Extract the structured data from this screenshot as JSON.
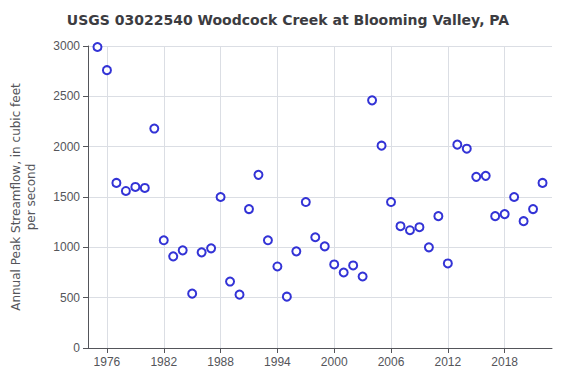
{
  "chart_data": {
    "type": "scatter",
    "title": "USGS 03022540 Woodcock Creek at Blooming Valley, PA",
    "ylabel": "Annual Peak Streamflow, in cubic feet\nper second",
    "x": [
      1975,
      1976,
      1977,
      1978,
      1979,
      1980,
      1981,
      1982,
      1983,
      1984,
      1985,
      1986,
      1987,
      1988,
      1989,
      1990,
      1991,
      1992,
      1993,
      1994,
      1995,
      1996,
      1997,
      1998,
      1999,
      2000,
      2001,
      2002,
      2003,
      2004,
      2005,
      2006,
      2007,
      2008,
      2009,
      2010,
      2011,
      2012,
      2013,
      2014,
      2015,
      2016,
      2017,
      2018,
      2019,
      2020,
      2021,
      2022
    ],
    "values": [
      2990,
      2760,
      1640,
      1560,
      1600,
      1590,
      2180,
      1070,
      910,
      970,
      540,
      950,
      990,
      1500,
      660,
      530,
      1380,
      1720,
      1070,
      810,
      510,
      960,
      1450,
      1100,
      1010,
      830,
      750,
      820,
      710,
      2460,
      2010,
      1450,
      1210,
      1170,
      1200,
      1000,
      1310,
      840,
      2020,
      1980,
      1700,
      1710,
      1310,
      1330,
      1500,
      1260,
      1380,
      1640
    ],
    "color": "#0000cc",
    "marker": "circle",
    "xlim": [
      1974,
      2023
    ],
    "ylim": [
      0,
      3000
    ],
    "xticks": [
      1976,
      1982,
      1988,
      1994,
      2000,
      2006,
      2012,
      2018
    ],
    "yticks": [
      0,
      500,
      1000,
      1500,
      2000,
      2500,
      3000
    ],
    "grid": true
  }
}
